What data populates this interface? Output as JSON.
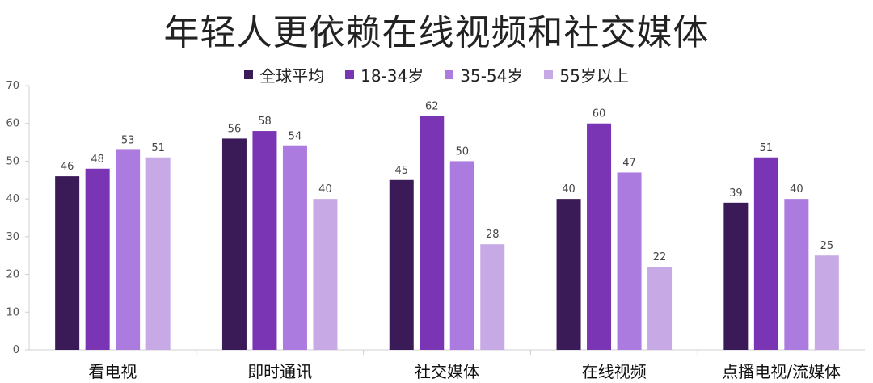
{
  "chart_data": {
    "type": "bar",
    "title": "年轻人更依赖在线视频和社交媒体",
    "categories": [
      "看电视",
      "即时通讯",
      "社交媒体",
      "在线视频",
      "点播电视/流媒体"
    ],
    "series": [
      {
        "name": "全球平均",
        "values": [
          46,
          56,
          45,
          40,
          39
        ],
        "color": "#3a1a57"
      },
      {
        "name": "18-34岁",
        "values": [
          48,
          58,
          62,
          60,
          51
        ],
        "color": "#7a35b5"
      },
      {
        "name": "35-54岁",
        "values": [
          53,
          54,
          50,
          47,
          40
        ],
        "color": "#ab7be0"
      },
      {
        "name": "55岁以上",
        "values": [
          51,
          40,
          28,
          22,
          25
        ],
        "color": "#c7a9e6"
      }
    ],
    "ylim": [
      0,
      70
    ],
    "yticks": [
      0,
      10,
      20,
      30,
      40,
      50,
      60,
      70
    ],
    "legend_position": "top",
    "grid": false,
    "xlabel": "",
    "ylabel": ""
  }
}
